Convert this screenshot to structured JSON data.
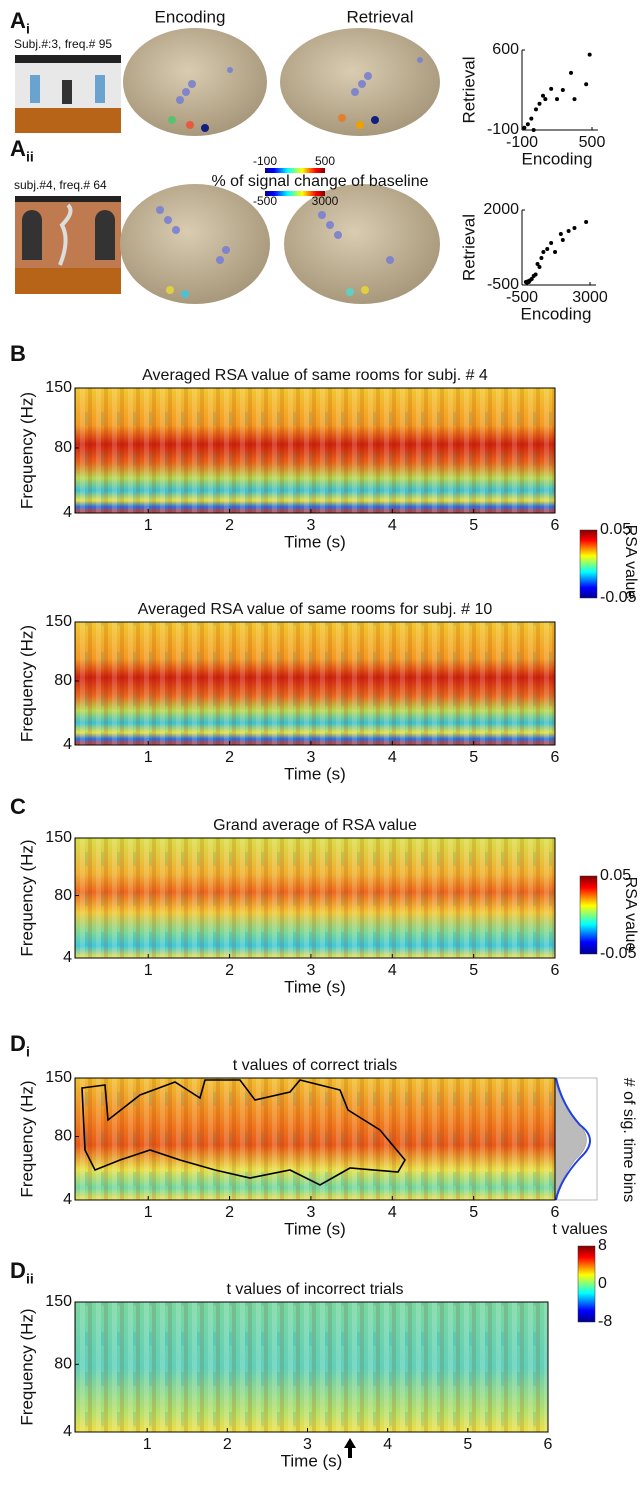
{
  "panel_a": {
    "label": "A",
    "row_i": {
      "sub": "i",
      "caption": "Subj.#:3, freq.# 95"
    },
    "row_ii": {
      "sub": "ii",
      "caption": "subj.#4, freq.# 64"
    },
    "encoding_title": "Encoding",
    "retrieval_title": "Retrieval",
    "colorbar_title": "% of signal change of baseline",
    "colorbar_i": {
      "clim": [
        -100,
        500
      ],
      "ticks": [
        -100,
        500
      ]
    },
    "colorbar_ii": {
      "clim": [
        -500,
        3000
      ],
      "ticks": [
        -500,
        3000
      ]
    }
  },
  "chart_data": [
    {
      "type": "scatter",
      "xlabel": "Encoding",
      "ylabel": "Retrieval",
      "color": "#000000",
      "xlim": [
        -100,
        500
      ],
      "ylim": [
        -100,
        600
      ],
      "xticks": [
        -100,
        500
      ],
      "yticks": [
        -100,
        600
      ],
      "x": [
        -80,
        -50,
        -20,
        0,
        20,
        50,
        100,
        80,
        150,
        200,
        250,
        320,
        350,
        450,
        480
      ],
      "y": [
        -80,
        -50,
        0,
        -100,
        80,
        130,
        170,
        200,
        260,
        170,
        250,
        400,
        170,
        300,
        560
      ]
    },
    {
      "type": "scatter",
      "xlabel": "Encoding",
      "ylabel": "Retrieval",
      "color": "#000000",
      "xlim": [
        -500,
        3000
      ],
      "ylim": [
        -500,
        2000
      ],
      "xticks": [
        -500,
        3000
      ],
      "yticks": [
        -500,
        2000
      ],
      "x": [
        -300,
        -250,
        -200,
        -150,
        -100,
        0,
        100,
        200,
        300,
        400,
        500,
        600,
        800,
        1000,
        1200,
        1500,
        1600,
        1900,
        2200,
        2800
      ],
      "y": [
        -400,
        -420,
        -380,
        -400,
        -350,
        -300,
        -200,
        -150,
        200,
        100,
        400,
        600,
        700,
        900,
        600,
        1200,
        1000,
        1300,
        1400,
        1600
      ]
    }
  ],
  "panel_b": {
    "label": "B",
    "colorbar": {
      "label": "RSA value",
      "clim": [
        -0.05,
        0.05
      ],
      "ticks": [
        -0.05,
        0.05
      ]
    },
    "maps": [
      {
        "title": "Averaged RSA value of same rooms for subj. # 4",
        "xlabel": "Time (s)",
        "ylabel": "Frequency (Hz)",
        "xlim": [
          0.1,
          6
        ],
        "xticks": [
          1,
          2,
          3,
          4,
          5,
          6
        ],
        "ylim": [
          4,
          150
        ],
        "yticks": [
          4,
          80,
          150
        ]
      },
      {
        "title": "Averaged RSA value of same rooms for subj. # 10",
        "xlabel": "Time (s)",
        "ylabel": "Frequency (Hz)",
        "xlim": [
          0.1,
          6
        ],
        "xticks": [
          1,
          2,
          3,
          4,
          5,
          6
        ],
        "ylim": [
          4,
          150
        ],
        "yticks": [
          4,
          80,
          150
        ]
      }
    ]
  },
  "panel_c": {
    "label": "C",
    "colorbar": {
      "label": "RSA value",
      "clim": [
        -0.05,
        0.05
      ],
      "ticks": [
        -0.05,
        0.05
      ]
    },
    "map": {
      "title": "Grand average of RSA value",
      "xlabel": "Time (s)",
      "ylabel": "Frequency (Hz)",
      "xlim": [
        0.1,
        6
      ],
      "xticks": [
        1,
        2,
        3,
        4,
        5,
        6
      ],
      "ylim": [
        4,
        150
      ],
      "yticks": [
        4,
        80,
        150
      ]
    }
  },
  "panel_d": {
    "label": "D",
    "histogram_label": "# of sig. time bins",
    "colorbar": {
      "label": "t values",
      "clim": [
        -8,
        8
      ],
      "ticks": [
        -8,
        0,
        8
      ]
    },
    "maps": [
      {
        "sub": "i",
        "title": "t values of correct trials",
        "xlabel": "Time (s)",
        "ylabel": "Frequency (Hz)",
        "xlim": [
          0.1,
          6
        ],
        "xticks": [
          1,
          2,
          3,
          4,
          5,
          6
        ],
        "ylim": [
          4,
          150
        ],
        "yticks": [
          4,
          80,
          150
        ]
      },
      {
        "sub": "ii",
        "title": "t values of incorrect trials",
        "xlabel": "Time (s)",
        "ylabel": "Frequency (Hz)",
        "xlim": [
          0.1,
          6
        ],
        "xticks": [
          1,
          2,
          3,
          4,
          5,
          6
        ],
        "ylim": [
          4,
          150
        ],
        "yticks": [
          4,
          80,
          150
        ]
      }
    ]
  }
}
